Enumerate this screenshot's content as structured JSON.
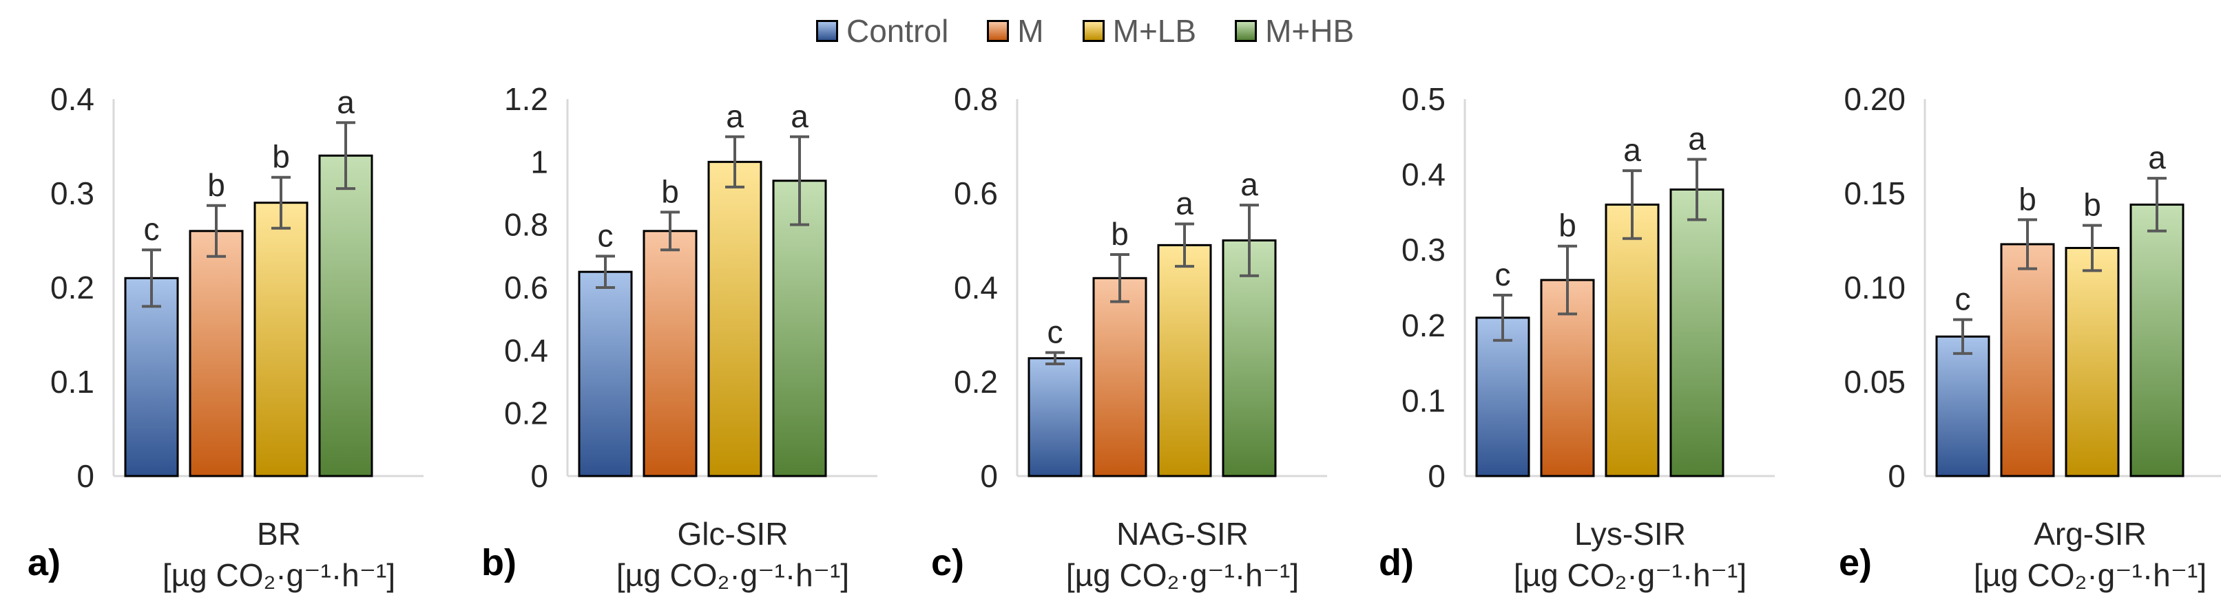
{
  "colors": {
    "Control": [
      "#a9c4eb",
      "#2f528f"
    ],
    "M": [
      "#f8c6a4",
      "#c55a11"
    ],
    "M+LB": [
      "#ffe699",
      "#c09000"
    ],
    "M+HB": [
      "#c5e0b4",
      "#538135"
    ],
    "bar_outline": "#000000",
    "error_bar": "#595959",
    "axis": "#d9d9d9"
  },
  "legend": [
    {
      "label": "Control",
      "key": "Control"
    },
    {
      "label": "M",
      "key": "M"
    },
    {
      "label": "M+LB",
      "key": "M+LB"
    },
    {
      "label": "M+HB",
      "key": "M+HB"
    }
  ],
  "chart_data": [
    {
      "type": "bar",
      "panel": "a)",
      "xlabel": "BR",
      "unit": "[µg CO₂·g⁻¹·h⁻¹]",
      "categories": [
        "Control",
        "M",
        "M+LB",
        "M+HB"
      ],
      "values": [
        0.21,
        0.26,
        0.29,
        0.34
      ],
      "errors": [
        0.03,
        0.027,
        0.027,
        0.035
      ],
      "letters": [
        "c",
        "b",
        "b",
        "a"
      ],
      "ylim": [
        0,
        0.4
      ],
      "yticks": [
        "0",
        "0.1",
        "0.2",
        "0.3",
        "0.4"
      ],
      "grid": false
    },
    {
      "type": "bar",
      "panel": "b)",
      "xlabel": "Glc-SIR",
      "unit": "[µg CO₂·g⁻¹·h⁻¹]",
      "categories": [
        "Control",
        "M",
        "M+LB",
        "M+HB"
      ],
      "values": [
        0.65,
        0.78,
        1.0,
        0.94
      ],
      "errors": [
        0.05,
        0.06,
        0.08,
        0.14
      ],
      "letters": [
        "c",
        "b",
        "a",
        "a"
      ],
      "ylim": [
        0,
        1.2
      ],
      "yticks": [
        "0",
        "0.2",
        "0.4",
        "0.6",
        "0.8",
        "1",
        "1.2"
      ],
      "grid": false
    },
    {
      "type": "bar",
      "panel": "c)",
      "xlabel": "NAG-SIR",
      "unit": "[µg CO₂·g⁻¹·h⁻¹]",
      "categories": [
        "Control",
        "M",
        "M+LB",
        "M+HB"
      ],
      "values": [
        0.25,
        0.42,
        0.49,
        0.5
      ],
      "errors": [
        0.012,
        0.05,
        0.045,
        0.075
      ],
      "letters": [
        "c",
        "b",
        "a",
        "a"
      ],
      "ylim": [
        0,
        0.8
      ],
      "yticks": [
        "0",
        "0.2",
        "0.4",
        "0.6",
        "0.8"
      ],
      "grid": false
    },
    {
      "type": "bar",
      "panel": "d)",
      "xlabel": "Lys-SIR",
      "unit": "[µg CO₂·g⁻¹·h⁻¹]",
      "categories": [
        "Control",
        "M",
        "M+LB",
        "M+HB"
      ],
      "values": [
        0.21,
        0.26,
        0.36,
        0.38
      ],
      "errors": [
        0.03,
        0.045,
        0.045,
        0.04
      ],
      "letters": [
        "c",
        "b",
        "a",
        "a"
      ],
      "ylim": [
        0,
        0.5
      ],
      "yticks": [
        "0",
        "0.1",
        "0.2",
        "0.3",
        "0.4",
        "0.5"
      ],
      "grid": false
    },
    {
      "type": "bar",
      "panel": "e)",
      "xlabel": "Arg-SIR",
      "unit": "[µg CO₂·g⁻¹·h⁻¹]",
      "categories": [
        "Control",
        "M",
        "M+LB",
        "M+HB"
      ],
      "values": [
        0.074,
        0.123,
        0.121,
        0.144
      ],
      "errors": [
        0.009,
        0.013,
        0.012,
        0.014
      ],
      "letters": [
        "c",
        "b",
        "b",
        "a"
      ],
      "ylim": [
        0,
        0.2
      ],
      "yticks": [
        "0",
        "0.05",
        "0.10",
        "0.15",
        "0.20"
      ],
      "grid": false
    }
  ]
}
